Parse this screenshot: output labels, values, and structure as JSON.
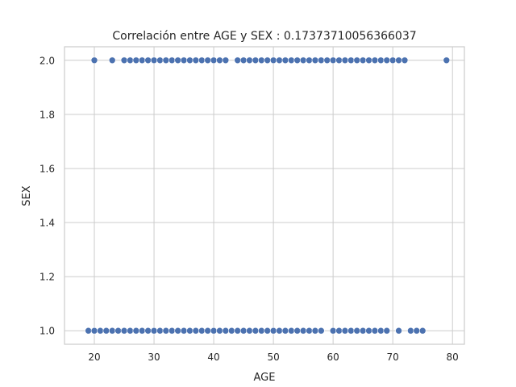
{
  "chart_data": {
    "type": "scatter",
    "title": "Correlación entre AGE y SEX : 0.17373710056366037",
    "xlabel": "AGE",
    "ylabel": "SEX",
    "xlim": [
      15.0,
      82.0
    ],
    "ylim": [
      0.95,
      2.05
    ],
    "xticks": [
      20,
      30,
      40,
      50,
      60,
      70,
      80
    ],
    "yticks": [
      1.0,
      1.2,
      1.4,
      1.6,
      1.8,
      2.0
    ],
    "xtick_labels": [
      "20",
      "30",
      "40",
      "50",
      "60",
      "70",
      "80"
    ],
    "ytick_labels": [
      "1.0",
      "1.2",
      "1.4",
      "1.6",
      "1.8",
      "2.0"
    ],
    "grid": true,
    "marker_color": "#4c72b0",
    "series": [
      {
        "points": [
          [
            20,
            2
          ],
          [
            23,
            2
          ],
          [
            25,
            2
          ],
          [
            26,
            2
          ],
          [
            27,
            2
          ],
          [
            28,
            2
          ],
          [
            29,
            2
          ],
          [
            30,
            2
          ],
          [
            31,
            2
          ],
          [
            32,
            2
          ],
          [
            33,
            2
          ],
          [
            34,
            2
          ],
          [
            35,
            2
          ],
          [
            36,
            2
          ],
          [
            37,
            2
          ],
          [
            38,
            2
          ],
          [
            39,
            2
          ],
          [
            40,
            2
          ],
          [
            41,
            2
          ],
          [
            42,
            2
          ],
          [
            44,
            2
          ],
          [
            45,
            2
          ],
          [
            46,
            2
          ],
          [
            47,
            2
          ],
          [
            48,
            2
          ],
          [
            49,
            2
          ],
          [
            50,
            2
          ],
          [
            51,
            2
          ],
          [
            52,
            2
          ],
          [
            53,
            2
          ],
          [
            54,
            2
          ],
          [
            55,
            2
          ],
          [
            56,
            2
          ],
          [
            57,
            2
          ],
          [
            58,
            2
          ],
          [
            59,
            2
          ],
          [
            60,
            2
          ],
          [
            61,
            2
          ],
          [
            62,
            2
          ],
          [
            63,
            2
          ],
          [
            64,
            2
          ],
          [
            65,
            2
          ],
          [
            66,
            2
          ],
          [
            67,
            2
          ],
          [
            68,
            2
          ],
          [
            69,
            2
          ],
          [
            70,
            2
          ],
          [
            71,
            2
          ],
          [
            72,
            2
          ],
          [
            79,
            2
          ],
          [
            19,
            1
          ],
          [
            20,
            1
          ],
          [
            21,
            1
          ],
          [
            22,
            1
          ],
          [
            23,
            1
          ],
          [
            24,
            1
          ],
          [
            25,
            1
          ],
          [
            26,
            1
          ],
          [
            27,
            1
          ],
          [
            28,
            1
          ],
          [
            29,
            1
          ],
          [
            30,
            1
          ],
          [
            31,
            1
          ],
          [
            32,
            1
          ],
          [
            33,
            1
          ],
          [
            34,
            1
          ],
          [
            35,
            1
          ],
          [
            36,
            1
          ],
          [
            37,
            1
          ],
          [
            38,
            1
          ],
          [
            39,
            1
          ],
          [
            40,
            1
          ],
          [
            41,
            1
          ],
          [
            42,
            1
          ],
          [
            43,
            1
          ],
          [
            44,
            1
          ],
          [
            45,
            1
          ],
          [
            46,
            1
          ],
          [
            47,
            1
          ],
          [
            48,
            1
          ],
          [
            49,
            1
          ],
          [
            50,
            1
          ],
          [
            51,
            1
          ],
          [
            52,
            1
          ],
          [
            53,
            1
          ],
          [
            54,
            1
          ],
          [
            55,
            1
          ],
          [
            56,
            1
          ],
          [
            57,
            1
          ],
          [
            58,
            1
          ],
          [
            60,
            1
          ],
          [
            61,
            1
          ],
          [
            62,
            1
          ],
          [
            63,
            1
          ],
          [
            64,
            1
          ],
          [
            65,
            1
          ],
          [
            66,
            1
          ],
          [
            67,
            1
          ],
          [
            68,
            1
          ],
          [
            69,
            1
          ],
          [
            71,
            1
          ],
          [
            73,
            1
          ],
          [
            74,
            1
          ],
          [
            75,
            1
          ]
        ]
      }
    ]
  }
}
